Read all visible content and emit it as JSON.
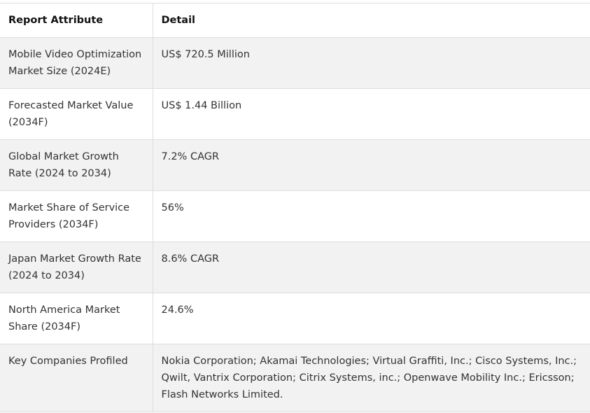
{
  "table": {
    "headers": [
      "Report Attribute",
      "Detail"
    ],
    "rows": [
      {
        "attribute": "Mobile Video Optimization Market Size (2024E)",
        "detail": "US$ 720.5 Million"
      },
      {
        "attribute": "Forecasted Market Value (2034F)",
        "detail": "US$ 1.44 Billion"
      },
      {
        "attribute": "Global Market Growth Rate (2024 to 2034)",
        "detail": "7.2% CAGR"
      },
      {
        "attribute": "Market Share of Service Providers (2034F)",
        "detail": "56%"
      },
      {
        "attribute": "Japan Market Growth Rate (2024 to 2034)",
        "detail": "8.6% CAGR"
      },
      {
        "attribute": "North America Market Share (2034F)",
        "detail": "24.6%"
      },
      {
        "attribute": "Key Companies Profiled",
        "detail": "Nokia Corporation; Akamai Technologies; Virtual Graffiti, Inc.; Cisco Systems, Inc.; Qwilt, Vantrix Corporation; Citrix Systems, inc.; Openwave Mobility Inc.; Ericsson; Flash Networks Limited."
      }
    ]
  }
}
